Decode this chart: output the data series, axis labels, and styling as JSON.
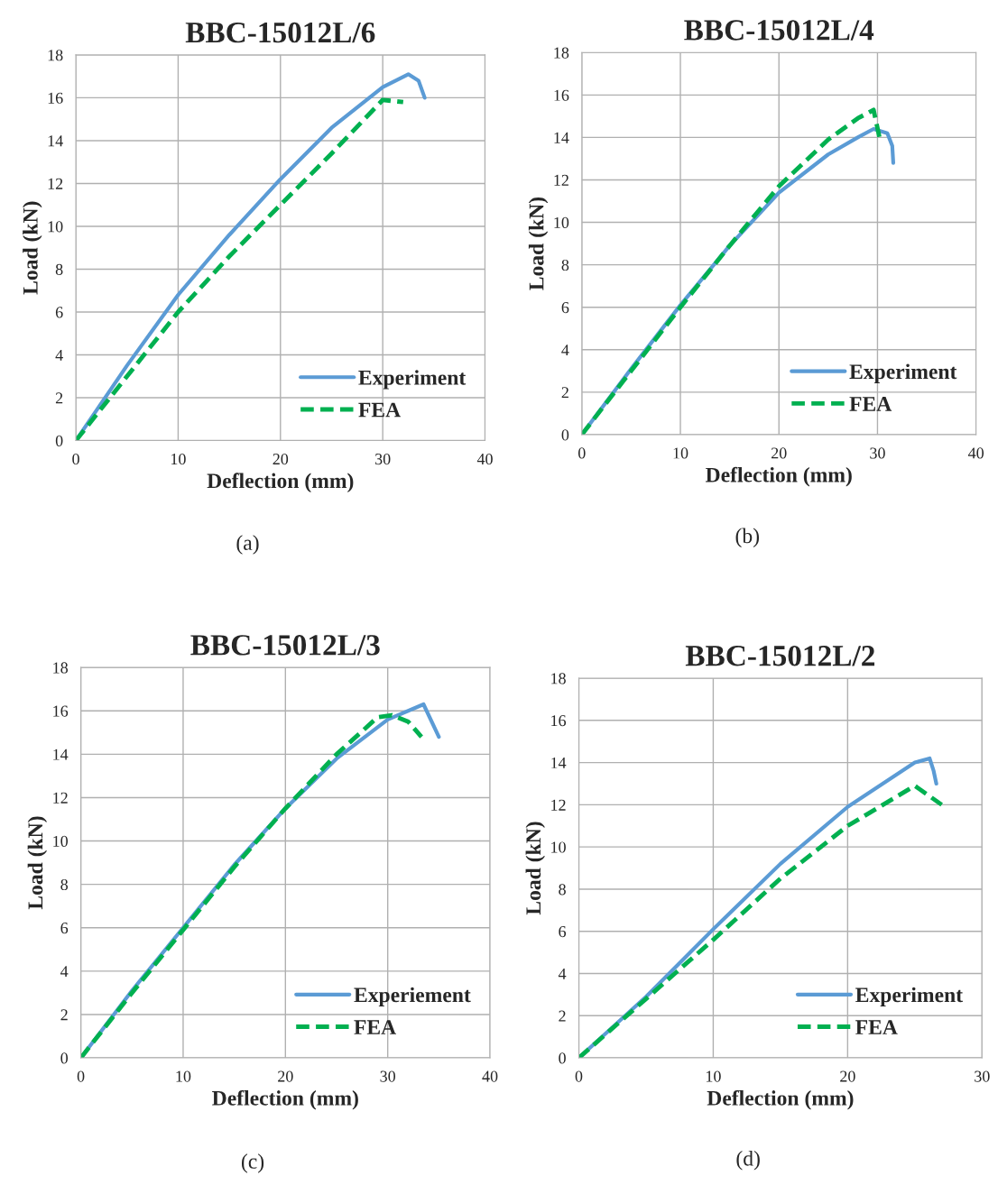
{
  "chart_data": [
    {
      "type": "line",
      "title": "BBC-15012L/6",
      "xlabel": "Deflection (mm)",
      "ylabel": "Load (kN)",
      "annotations": [
        "(a)"
      ],
      "xlim": [
        0,
        40
      ],
      "ylim": [
        0,
        18
      ],
      "xticks": [
        0,
        10,
        20,
        30,
        40
      ],
      "yticks": [
        0,
        2,
        4,
        6,
        8,
        10,
        12,
        14,
        16,
        18
      ],
      "grid": true,
      "legend": "bottom right",
      "series": [
        {
          "name": "Experiment",
          "color": "#5b9bd5",
          "line_style": "solid",
          "x": [
            0,
            5,
            10,
            15,
            20,
            25,
            30,
            32.5,
            33.5,
            34.1
          ],
          "values": [
            0,
            3.5,
            6.8,
            9.6,
            12.2,
            14.6,
            16.5,
            17.1,
            16.8,
            16.0
          ]
        },
        {
          "name": "FEA",
          "color": "#00b050",
          "line_style": "dashed",
          "x": [
            0,
            5,
            10,
            15,
            20,
            25,
            28,
            30,
            32
          ],
          "values": [
            0,
            3.0,
            6.0,
            8.6,
            11.0,
            13.4,
            14.9,
            15.9,
            15.8
          ]
        }
      ]
    },
    {
      "type": "line",
      "title": "BBC-15012L/4",
      "xlabel": "Deflection (mm)",
      "ylabel": "Load (kN)",
      "annotations": [
        "(b)"
      ],
      "xlim": [
        0,
        40
      ],
      "ylim": [
        0,
        18
      ],
      "xticks": [
        0,
        10,
        20,
        30,
        40
      ],
      "yticks": [
        0,
        2,
        4,
        6,
        8,
        10,
        12,
        14,
        16,
        18
      ],
      "grid": true,
      "legend": "bottom right",
      "series": [
        {
          "name": "Experiment",
          "color": "#5b9bd5",
          "line_style": "solid",
          "x": [
            0,
            5,
            10,
            15,
            20,
            25,
            28,
            29.6,
            31,
            31.5,
            31.6
          ],
          "values": [
            0,
            3.1,
            6.1,
            8.9,
            11.4,
            13.2,
            14.0,
            14.4,
            14.2,
            13.6,
            12.8
          ]
        },
        {
          "name": "FEA",
          "color": "#00b050",
          "line_style": "dashed",
          "x": [
            0,
            5,
            10,
            15,
            20,
            25,
            28,
            29.6,
            30.2
          ],
          "values": [
            0,
            3.0,
            6.0,
            8.9,
            11.7,
            13.9,
            14.9,
            15.3,
            14.0
          ]
        }
      ]
    },
    {
      "type": "line",
      "title": "BBC-15012L/3",
      "xlabel": "Deflection (mm)",
      "ylabel": "Load (kN)",
      "annotations": [
        "(c)"
      ],
      "xlim": [
        0,
        40
      ],
      "ylim": [
        0,
        18
      ],
      "xticks": [
        0,
        10,
        20,
        30,
        40
      ],
      "yticks": [
        0,
        2,
        4,
        6,
        8,
        10,
        12,
        14,
        16,
        18
      ],
      "grid": true,
      "legend": "bottom right",
      "series": [
        {
          "name": "Experiement",
          "color": "#5b9bd5",
          "line_style": "solid",
          "x": [
            0,
            5,
            10,
            15,
            20,
            25,
            30,
            33.5,
            35.0
          ],
          "values": [
            0,
            3.1,
            6.0,
            8.9,
            11.5,
            13.8,
            15.6,
            16.3,
            14.8
          ]
        },
        {
          "name": "FEA",
          "color": "#00b050",
          "line_style": "dashed",
          "x": [
            0,
            5,
            10,
            15,
            20,
            25,
            29,
            30.4,
            32,
            33.3
          ],
          "values": [
            0,
            3.0,
            5.9,
            8.8,
            11.5,
            14.0,
            15.7,
            15.8,
            15.5,
            14.8
          ]
        }
      ]
    },
    {
      "type": "line",
      "title": "BBC-15012L/2",
      "xlabel": "Deflection (mm)",
      "ylabel": "Load (kN)",
      "annotations": [
        "(d)"
      ],
      "xlim": [
        0,
        30
      ],
      "ylim": [
        0,
        18
      ],
      "xticks": [
        0,
        10,
        20,
        30
      ],
      "yticks": [
        0,
        2,
        4,
        6,
        8,
        10,
        12,
        14,
        16,
        18
      ],
      "grid": true,
      "legend": "bottom right",
      "series": [
        {
          "name": "Experiment",
          "color": "#5b9bd5",
          "line_style": "solid",
          "x": [
            0,
            5,
            10,
            15,
            20,
            25,
            26.1,
            26.4,
            26.6
          ],
          "values": [
            0,
            2.9,
            6.1,
            9.2,
            11.9,
            14.0,
            14.2,
            13.6,
            13.0
          ]
        },
        {
          "name": "FEA",
          "color": "#00b050",
          "line_style": "dashed",
          "x": [
            0,
            5,
            10,
            15,
            20,
            25,
            27.0
          ],
          "values": [
            0,
            2.8,
            5.6,
            8.5,
            11.0,
            12.9,
            12.0
          ]
        }
      ]
    }
  ]
}
